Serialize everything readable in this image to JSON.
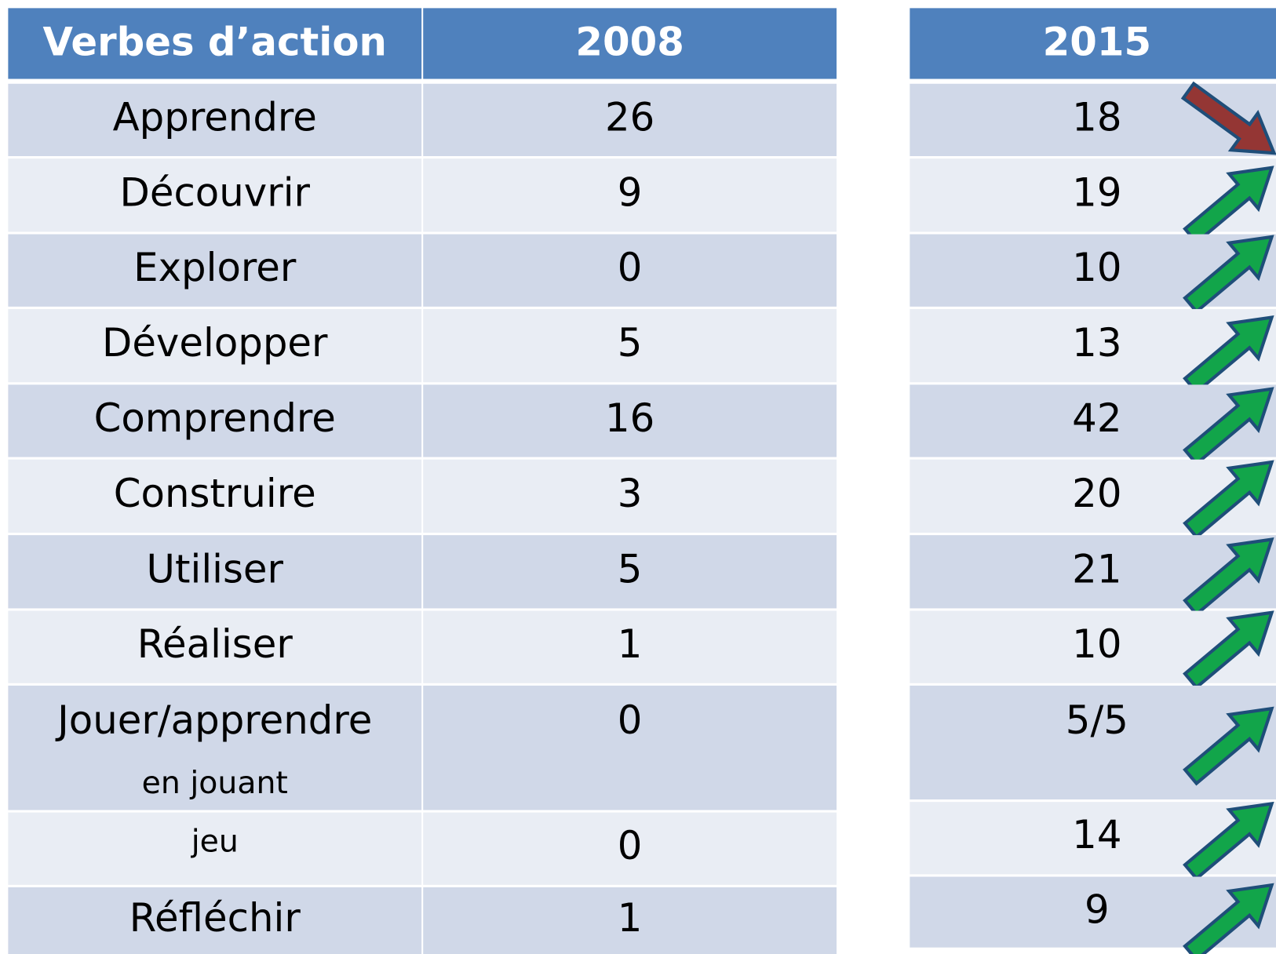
{
  "table": {
    "headers": [
      "Verbes d’action",
      "2008",
      "2015"
    ],
    "rows": [
      [
        "Apprendre",
        26,
        18
      ],
      [
        "Découvrir",
        9,
        19
      ],
      [
        "Explorer",
        0,
        10
      ],
      [
        "Développer",
        5,
        13
      ],
      [
        "Comprendre",
        16,
        42
      ],
      [
        "Construire",
        3,
        20
      ],
      [
        "Utiliser",
        5,
        21
      ],
      [
        "Réaliser",
        1,
        10
      ],
      [
        [
          "Jouer/apprendre",
          "en jouant"
        ],
        0,
        "5/5"
      ],
      [
        "jeu",
        0,
        14
      ],
      [
        "Réfléchir",
        1,
        9
      ]
    ]
  }
}
